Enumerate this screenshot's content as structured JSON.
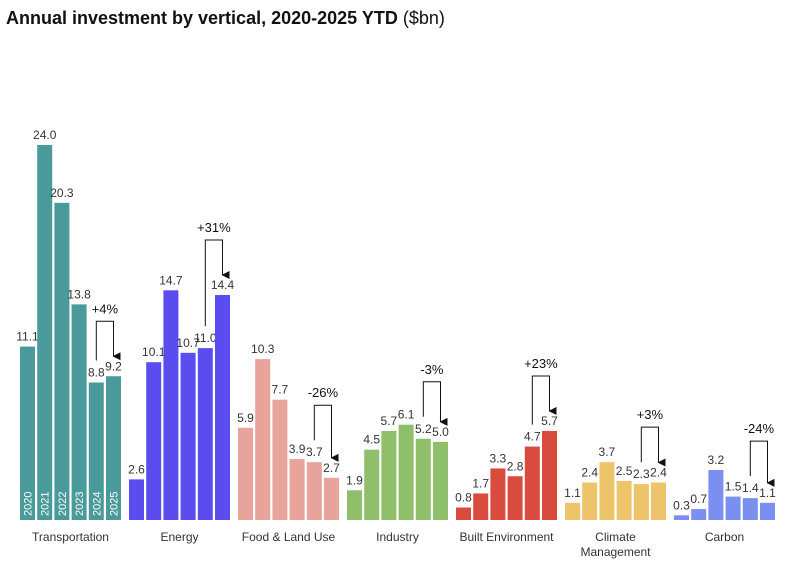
{
  "chart_data": {
    "type": "bar",
    "title": "Annual investment by vertical, 2020-2025 YTD",
    "unit": "($bn)",
    "years": [
      "2020",
      "2021",
      "2022",
      "2023",
      "2024",
      "2025"
    ],
    "groups": [
      {
        "name": "Transportation",
        "color": "#4a9a9c",
        "values": [
          11.1,
          24.0,
          20.3,
          13.8,
          8.8,
          9.2
        ],
        "value_labels": [
          "11.1",
          "24.0",
          "20.3",
          "13.8",
          "8.8",
          "9.2"
        ],
        "change": "+4%"
      },
      {
        "name": "Energy",
        "color": "#5b4cf0",
        "values": [
          2.6,
          10.1,
          14.7,
          10.7,
          11.0,
          14.4
        ],
        "value_labels": [
          "2.6",
          "10.1",
          "14.7",
          "10.7",
          "11.0",
          "14.4"
        ],
        "change": "+31%"
      },
      {
        "name": "Food & Land Use",
        "color": "#e8a49a",
        "values": [
          5.9,
          10.3,
          7.7,
          3.9,
          3.7,
          2.7
        ],
        "value_labels": [
          "5.9",
          "10.3",
          "7.7",
          "3.9",
          "3.7",
          "2.7"
        ],
        "change": "-26%"
      },
      {
        "name": "Industry",
        "color": "#8fbf6a",
        "values": [
          1.9,
          4.5,
          5.7,
          6.1,
          5.2,
          5.0
        ],
        "value_labels": [
          "1.9",
          "4.5",
          "5.7",
          "6.1",
          "5.2",
          "5.0"
        ],
        "change": "-3%"
      },
      {
        "name": "Built Environment",
        "color": "#d94b3d",
        "values": [
          0.8,
          1.7,
          3.3,
          2.8,
          4.7,
          5.7
        ],
        "value_labels": [
          "0.8",
          "1.7",
          "3.3",
          "2.8",
          "4.7",
          "5.7"
        ],
        "change": "+23%"
      },
      {
        "name": "Climate Management",
        "color": "#eec46a",
        "values": [
          1.1,
          2.4,
          3.7,
          2.5,
          2.3,
          2.4
        ],
        "value_labels": [
          "1.1",
          "2.4",
          "3.7",
          "2.5",
          "2.3",
          "2.4"
        ],
        "change": "+3%"
      },
      {
        "name": "Carbon",
        "color": "#7b8ff0",
        "values": [
          0.3,
          0.7,
          3.2,
          1.5,
          1.4,
          1.1
        ],
        "value_labels": [
          "0.3",
          "0.7",
          "3.2",
          "1.5",
          "1.4",
          "1.1"
        ],
        "change": "-24%"
      }
    ]
  }
}
